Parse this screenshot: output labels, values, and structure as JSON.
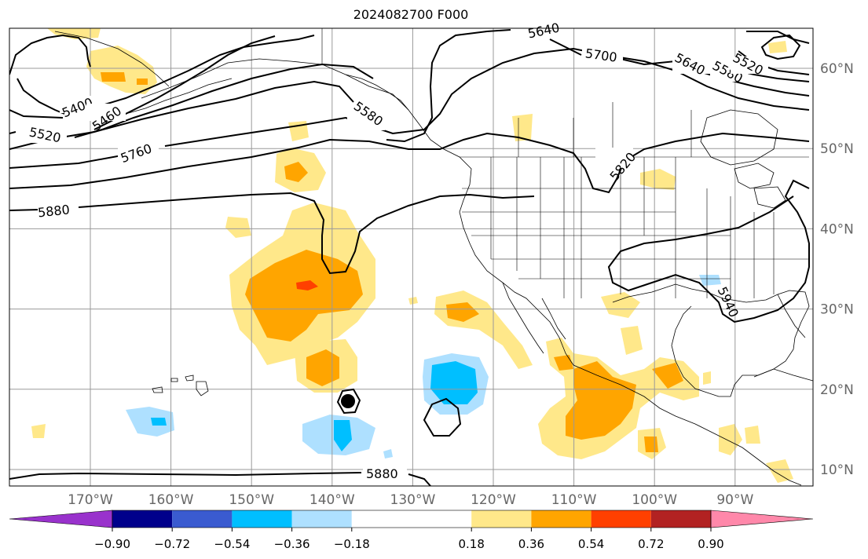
{
  "title": "2024082700 F000",
  "colors": {
    "grid": "#999999",
    "coast": "#000000",
    "contour": "#000000",
    "marker": "#000000",
    "outside_low": "#9932cc",
    "outside_high": "#ff88aa"
  },
  "lon_ticks": [
    "170°W",
    "160°W",
    "150°W",
    "140°W",
    "130°W",
    "120°W",
    "110°W",
    "100°W",
    "90°W"
  ],
  "lat_ticks": [
    "60°N",
    "50°N",
    "40°N",
    "30°N",
    "20°N",
    "10°N"
  ],
  "colorbar": {
    "bins": [
      {
        "from": -0.9,
        "to": -0.72,
        "color": "#00008b"
      },
      {
        "from": -0.72,
        "to": -0.54,
        "color": "#3a5bd0"
      },
      {
        "from": -0.54,
        "to": -0.36,
        "color": "#00bfff"
      },
      {
        "from": -0.36,
        "to": -0.18,
        "color": "#aee0ff"
      },
      {
        "from": -0.18,
        "to": 0.18,
        "color": "#ffffff"
      },
      {
        "from": 0.18,
        "to": 0.36,
        "color": "#ffe88a"
      },
      {
        "from": 0.36,
        "to": 0.54,
        "color": "#ffa500"
      },
      {
        "from": 0.54,
        "to": 0.72,
        "color": "#ff4000"
      },
      {
        "from": 0.72,
        "to": 0.9,
        "color": "#b22222"
      },
      {
        "from": 0.9,
        "to": 1.08,
        "color": "#ff88aa"
      }
    ],
    "tick_labels": [
      "−0.90",
      "−0.72",
      "−0.54",
      "−0.36",
      "−0.18",
      "0.18",
      "0.36",
      "0.54",
      "0.72",
      "0.90"
    ]
  },
  "contour_labels": [
    {
      "text": "5640"
    },
    {
      "text": "5700"
    },
    {
      "text": "5640"
    },
    {
      "text": "5580"
    },
    {
      "text": "5520"
    },
    {
      "text": "5400"
    },
    {
      "text": "5460"
    },
    {
      "text": "5520"
    },
    {
      "text": "5760"
    },
    {
      "text": "5580"
    },
    {
      "text": "5820"
    },
    {
      "text": "5880"
    },
    {
      "text": "5880"
    },
    {
      "text": "5940"
    }
  ]
}
